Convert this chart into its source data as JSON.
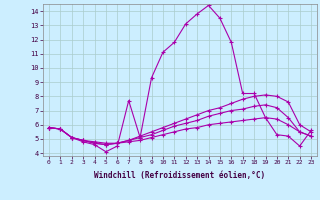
{
  "xlabel": "Windchill (Refroidissement éolien,°C)",
  "xlim": [
    -0.5,
    23.5
  ],
  "ylim": [
    3.8,
    14.5
  ],
  "yticks": [
    4,
    5,
    6,
    7,
    8,
    9,
    10,
    11,
    12,
    13,
    14
  ],
  "xticks": [
    0,
    1,
    2,
    3,
    4,
    5,
    6,
    7,
    8,
    9,
    10,
    11,
    12,
    13,
    14,
    15,
    16,
    17,
    18,
    19,
    20,
    21,
    22,
    23
  ],
  "bg_color": "#cceeff",
  "grid_color": "#aacccc",
  "line_color": "#aa00aa",
  "lines": [
    {
      "x": [
        0,
        1,
        2,
        3,
        4,
        5,
        6,
        7,
        8,
        9,
        10,
        11,
        12,
        13,
        14,
        15,
        16,
        17,
        18,
        19,
        20,
        21,
        22,
        23
      ],
      "y": [
        5.8,
        5.7,
        5.1,
        4.8,
        4.6,
        4.1,
        4.5,
        7.7,
        5.1,
        9.3,
        11.1,
        11.8,
        13.1,
        13.8,
        14.4,
        13.5,
        11.8,
        8.2,
        8.2,
        6.5,
        5.3,
        5.2,
        4.5,
        5.6
      ]
    },
    {
      "x": [
        0,
        1,
        2,
        3,
        4,
        5,
        6,
        7,
        8,
        9,
        10,
        11,
        12,
        13,
        14,
        15,
        16,
        17,
        18,
        19,
        20,
        21,
        22,
        23
      ],
      "y": [
        5.8,
        5.7,
        5.1,
        4.9,
        4.7,
        4.6,
        4.7,
        4.9,
        5.2,
        5.5,
        5.8,
        6.1,
        6.4,
        6.7,
        7.0,
        7.2,
        7.5,
        7.8,
        8.0,
        8.1,
        8.0,
        7.6,
        6.0,
        5.5
      ]
    },
    {
      "x": [
        0,
        1,
        2,
        3,
        4,
        5,
        6,
        7,
        8,
        9,
        10,
        11,
        12,
        13,
        14,
        15,
        16,
        17,
        18,
        19,
        20,
        21,
        22,
        23
      ],
      "y": [
        5.8,
        5.7,
        5.1,
        4.9,
        4.7,
        4.6,
        4.7,
        4.9,
        5.1,
        5.3,
        5.6,
        5.9,
        6.1,
        6.3,
        6.6,
        6.8,
        7.0,
        7.1,
        7.3,
        7.4,
        7.2,
        6.5,
        5.5,
        5.2
      ]
    },
    {
      "x": [
        0,
        1,
        2,
        3,
        4,
        5,
        6,
        7,
        8,
        9,
        10,
        11,
        12,
        13,
        14,
        15,
        16,
        17,
        18,
        19,
        20,
        21,
        22,
        23
      ],
      "y": [
        5.8,
        5.7,
        5.1,
        4.9,
        4.8,
        4.7,
        4.7,
        4.8,
        4.9,
        5.1,
        5.3,
        5.5,
        5.7,
        5.8,
        6.0,
        6.1,
        6.2,
        6.3,
        6.4,
        6.5,
        6.4,
        6.0,
        5.5,
        5.2
      ]
    }
  ]
}
